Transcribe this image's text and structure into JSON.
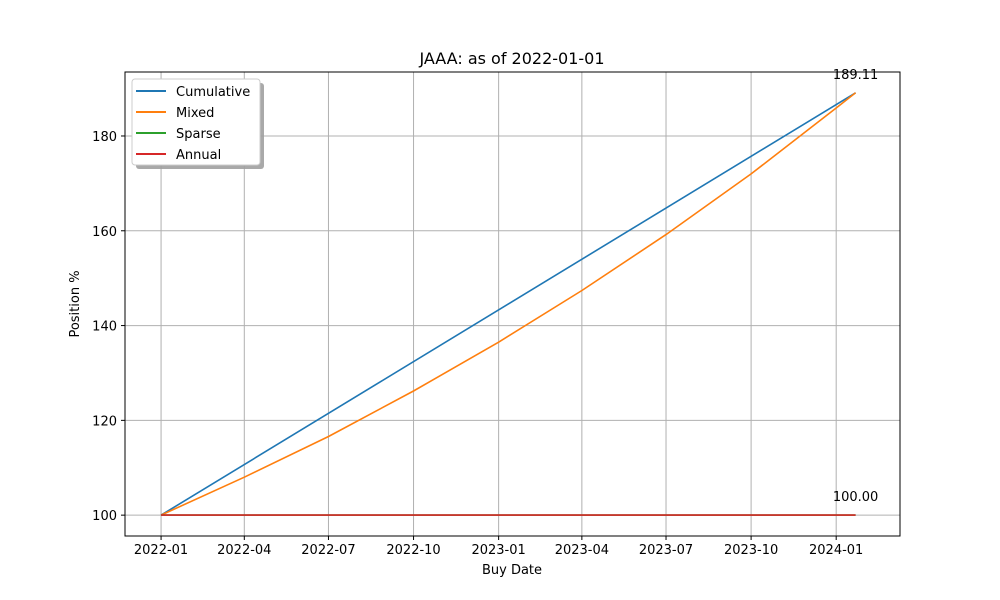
{
  "chart_data": {
    "type": "line",
    "title": "JAAA: as of 2022-01-01",
    "xlabel": "Buy Date",
    "ylabel": "Position %",
    "x_ticks": [
      "2022-01",
      "2022-04",
      "2022-07",
      "2022-10",
      "2023-01",
      "2023-04",
      "2023-07",
      "2023-10",
      "2024-01"
    ],
    "y_ticks": [
      100,
      120,
      140,
      160,
      180
    ],
    "xlim": [
      "2021-11-23",
      "2024-03-10"
    ],
    "ylim": [
      95.6,
      193.5
    ],
    "grid": true,
    "legend_position": "upper-left",
    "annotations": [
      {
        "text": "189.11",
        "x": "2024-01-22",
        "y": 189.11
      },
      {
        "text": "100.00",
        "x": "2024-01-22",
        "y": 100.0
      }
    ],
    "series": [
      {
        "name": "Cumulative",
        "color": "#1f77b4",
        "points": [
          [
            "2022-01-01",
            100.0
          ],
          [
            "2024-01-22",
            189.11
          ]
        ]
      },
      {
        "name": "Mixed",
        "color": "#ff7f0e",
        "points": [
          [
            "2022-01-01",
            100.0
          ],
          [
            "2022-04-01",
            108.0
          ],
          [
            "2022-07-01",
            116.6
          ],
          [
            "2022-10-01",
            126.2
          ],
          [
            "2023-01-01",
            136.5
          ],
          [
            "2023-04-01",
            147.4
          ],
          [
            "2023-07-01",
            159.2
          ],
          [
            "2023-10-01",
            172.0
          ],
          [
            "2024-01-01",
            185.9
          ],
          [
            "2024-01-22",
            189.11
          ]
        ]
      },
      {
        "name": "Sparse",
        "color": "#2ca02c",
        "points": [
          [
            "2022-01-01",
            100.0
          ],
          [
            "2024-01-22",
            100.0
          ]
        ]
      },
      {
        "name": "Annual",
        "color": "#d62728",
        "points": [
          [
            "2022-01-01",
            100.0
          ],
          [
            "2024-01-22",
            100.0
          ]
        ]
      }
    ]
  }
}
